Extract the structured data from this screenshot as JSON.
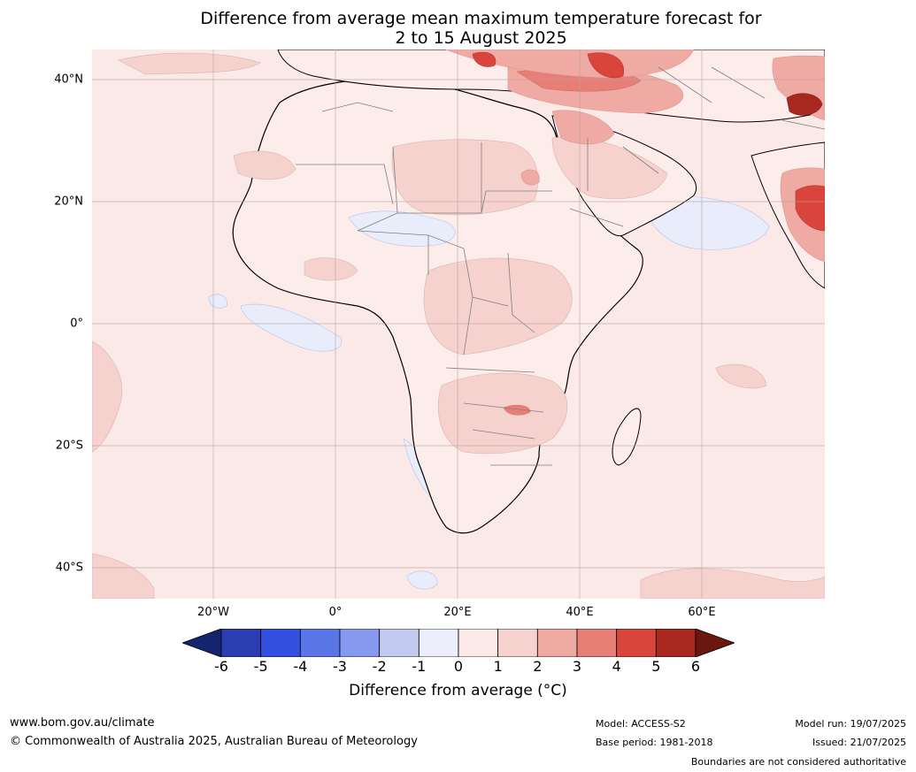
{
  "title": {
    "line1": "Difference from average mean maximum temperature forecast for",
    "line2": "2 to 15 August 2025"
  },
  "map": {
    "region": "Africa",
    "lat_labels": [
      "40°N",
      "20°N",
      "0°",
      "20°S",
      "40°S"
    ],
    "lon_labels": [
      "20°W",
      "0°",
      "20°E",
      "40°E",
      "60°E"
    ],
    "colors": {
      "ocean_base": "#fbe9e7",
      "land_base": "#fcecea",
      "warm_1_2": "#f6d2ce",
      "warm_2_3": "#eeaaa3",
      "warm_3_4": "#e77f77",
      "warm_4_5": "#d9453d",
      "warm_5_6": "#a8281f",
      "cool_-1_0": "#e8ecfb",
      "coastline": "#000000",
      "boundary": "#7f7f7f",
      "gridline": "#b8a0a0"
    }
  },
  "colorbar": {
    "ticks": [
      "-6",
      "-5",
      "-4",
      "-3",
      "-2",
      "-1",
      "0",
      "1",
      "2",
      "3",
      "4",
      "5",
      "6"
    ],
    "colors": [
      "#14246e",
      "#2a3eb1",
      "#3350e0",
      "#5a76e6",
      "#8799ee",
      "#c3caf2",
      "#eceffb",
      "#fbe9e7",
      "#f6d2ce",
      "#eeaaa3",
      "#e77f77",
      "#d9453d",
      "#a8281f",
      "#6b160f"
    ],
    "label": "Difference from average (°C)"
  },
  "footer": {
    "website": "www.bom.gov.au/climate",
    "copyright": "© Commonwealth of Australia 2025, Australian Bureau of Meteorology",
    "model": "Model: ACCESS-S2",
    "base_period": "Base period: 1981-2018",
    "model_run": "Model run: 19/07/2025",
    "issued": "Issued: 21/07/2025",
    "disclaimer": "Boundaries are not considered authoritative"
  }
}
